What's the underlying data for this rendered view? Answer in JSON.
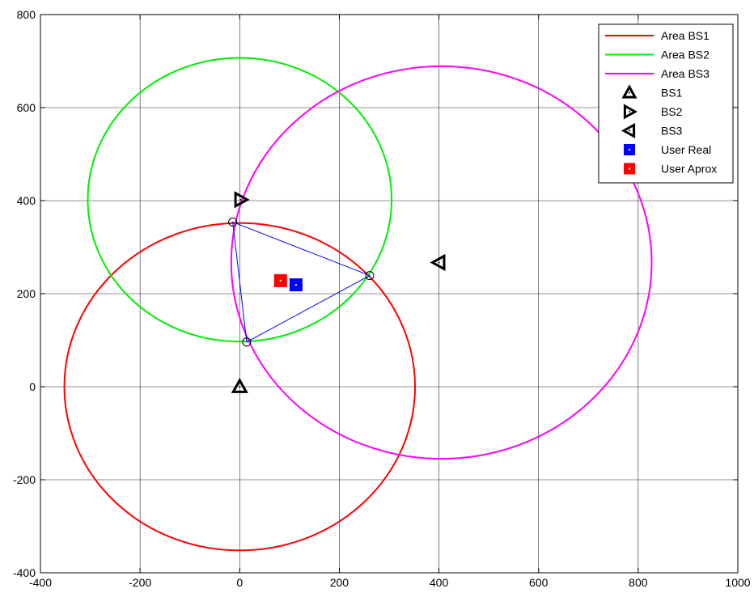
{
  "chart_data": {
    "type": "scatter",
    "title": "",
    "xlabel": "",
    "ylabel": "",
    "xlim": [
      -400,
      1000
    ],
    "ylim": [
      -400,
      800
    ],
    "xticks": [
      -400,
      -200,
      0,
      200,
      400,
      600,
      800,
      1000
    ],
    "yticks": [
      -400,
      -200,
      0,
      200,
      400,
      600,
      800
    ],
    "xtick_labels": [
      "-400",
      "-200",
      "0",
      "200",
      "400",
      "600",
      "800",
      "1000"
    ],
    "ytick_labels": [
      "-400",
      "-200",
      "0",
      "200",
      "400",
      "600",
      "800"
    ],
    "grid": true,
    "legend_position": "top-right",
    "circles": [
      {
        "name": "Area BS1",
        "center": [
          0,
          0
        ],
        "radius": 352,
        "color": "#ff0000"
      },
      {
        "name": "Area BS2",
        "center": [
          0,
          402
        ],
        "radius": 305,
        "color": "#00ee00"
      },
      {
        "name": "Area BS3",
        "center": [
          405,
          267
        ],
        "radius": 422,
        "color": "#ff00ff"
      }
    ],
    "markers": [
      {
        "name": "BS1",
        "x": 0,
        "y": 0,
        "shape": "triangle-up",
        "color": "#000000"
      },
      {
        "name": "BS2",
        "x": 2,
        "y": 402,
        "shape": "triangle-right",
        "color": "#000000"
      },
      {
        "name": "BS3",
        "x": 400,
        "y": 267,
        "shape": "triangle-left",
        "color": "#000000"
      },
      {
        "name": "User Real",
        "x": 113,
        "y": 219,
        "shape": "square",
        "color": "#0000ff"
      },
      {
        "name": "User Aprox",
        "x": 82,
        "y": 228,
        "shape": "square",
        "color": "#ff0000"
      }
    ],
    "intersection_points": [
      [
        -14,
        354
      ],
      [
        261,
        239
      ],
      [
        14,
        96
      ]
    ],
    "triangle_color": "#0000ff"
  }
}
